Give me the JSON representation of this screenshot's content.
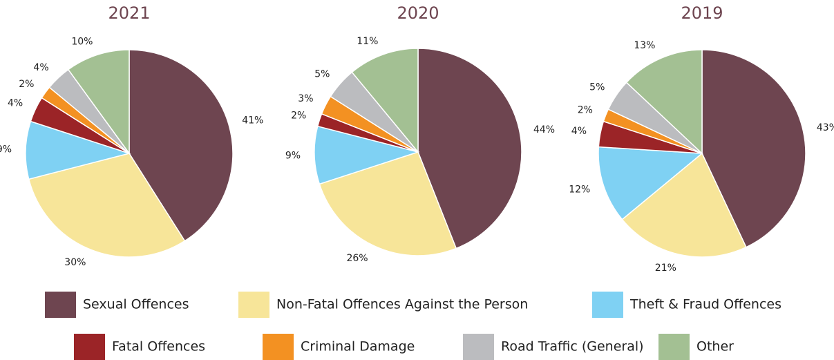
{
  "chart_data": [
    {
      "type": "pie",
      "title": "2021",
      "categories": [
        "Sexual Offences",
        "Non-Fatal Offences Against the Person",
        "Theft & Fraud Offences",
        "Fatal Offences",
        "Criminal Damage",
        "Road Traffic (General)",
        "Other"
      ],
      "values": [
        41,
        30,
        9,
        4,
        2,
        4,
        10
      ],
      "value_labels": [
        "41%",
        "30%",
        "9%",
        "4%",
        "2%",
        "4%",
        "10%"
      ],
      "colors": [
        "#6e4550",
        "#f7e599",
        "#7fd1f3",
        "#9b2427",
        "#f39122",
        "#bbbcbf",
        "#a3c093"
      ]
    },
    {
      "type": "pie",
      "title": "2020",
      "categories": [
        "Sexual Offences",
        "Non-Fatal Offences Against the Person",
        "Theft & Fraud Offences",
        "Fatal Offences",
        "Criminal Damage",
        "Road Traffic (General)",
        "Other"
      ],
      "values": [
        44,
        26,
        9,
        2,
        3,
        5,
        11
      ],
      "value_labels": [
        "44%",
        "26%",
        "9%",
        "2%",
        "3%",
        "5%",
        "11%"
      ],
      "colors": [
        "#6e4550",
        "#f7e599",
        "#7fd1f3",
        "#9b2427",
        "#f39122",
        "#bbbcbf",
        "#a3c093"
      ]
    },
    {
      "type": "pie",
      "title": "2019",
      "categories": [
        "Sexual Offences",
        "Non-Fatal Offences Against the Person",
        "Theft & Fraud Offences",
        "Fatal Offences",
        "Criminal Damage",
        "Road Traffic (General)",
        "Other"
      ],
      "values": [
        43,
        21,
        12,
        4,
        2,
        5,
        13
      ],
      "value_labels": [
        "43%",
        "21%",
        "12%",
        "4%",
        "2%",
        "5%",
        "13%"
      ],
      "colors": [
        "#6e4550",
        "#f7e599",
        "#7fd1f3",
        "#9b2427",
        "#f39122",
        "#bbbcbf",
        "#a3c093"
      ]
    }
  ]
}
